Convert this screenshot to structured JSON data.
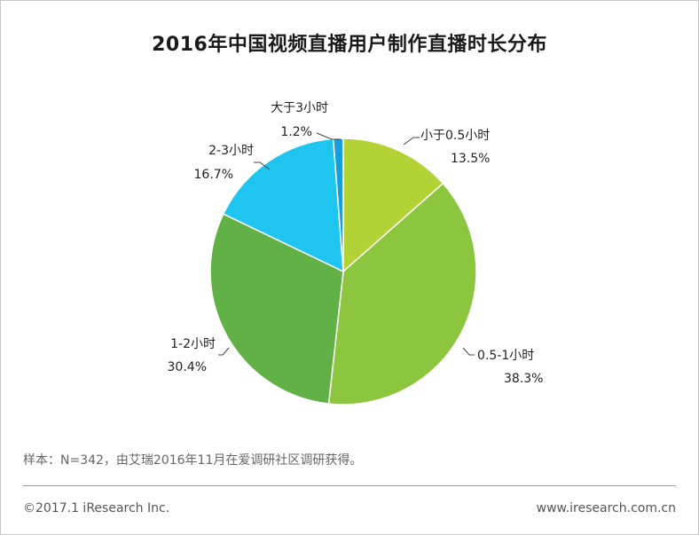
{
  "title": "2016年中国视频直播用户制作直播时长分布",
  "note": "样本：N=342，由艾瑞2016年11月在爱调研社区调研获得。",
  "copyright": "©2017.1 iResearch Inc.",
  "website": "www.iresearch.com.cn",
  "chart_data": {
    "type": "pie",
    "title": "2016年中国视频直播用户制作直播时长分布",
    "start_angle_deg": 0,
    "direction": "clockwise",
    "slices": [
      {
        "label": "小于0.5小时",
        "value": 13.5,
        "display": "13.5%",
        "color": "#b2d235"
      },
      {
        "label": "0.5-1小时",
        "value": 38.3,
        "display": "38.3%",
        "color": "#8cc63f"
      },
      {
        "label": "1-2小时",
        "value": 30.4,
        "display": "30.4%",
        "color": "#62b146"
      },
      {
        "label": "2-3小时",
        "value": 16.7,
        "display": "16.7%",
        "color": "#1ec5ef"
      },
      {
        "label": "大于3小时",
        "value": 1.2,
        "display": "1.2%",
        "color": "#14a0de"
      }
    ]
  }
}
